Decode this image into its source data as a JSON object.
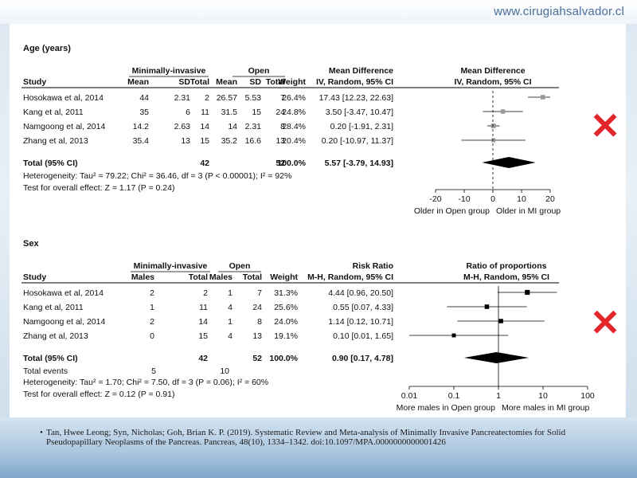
{
  "site_url": "www.cirugiahsalvador.cl",
  "citation_bullet": "•",
  "citation": "Tan, Hwee Leong; Syn, Nicholas; Goh, Brian K. P. (2019). Systematic Review and Meta-analysis of Minimally Invasive Pancreatectomies for Solid Pseudopapillary Neoplasms of the Pancreas. Pancreas, 48(10), 1334–1342. doi:10.1097/MPA.0000000000001426",
  "chart_data": [
    {
      "type": "forest",
      "section_title": "Age (years)",
      "group_headers": {
        "left": "Minimally-invasive",
        "right": "Open"
      },
      "columns": [
        "Study",
        "Mean",
        "SD",
        "Total",
        "Mean",
        "SD",
        "Total",
        "Weight"
      ],
      "effect_header": "Mean Difference",
      "effect_subheader": "IV, Random, 95% CI",
      "plot_header": "Mean Difference",
      "plot_subheader": "IV, Random, 95% CI",
      "studies": [
        {
          "study": "Hosokawa et al, 2014",
          "cells": [
            "44",
            "2.31",
            "2",
            "26.57",
            "5.53",
            "7",
            "26.4%"
          ],
          "ci_text": "17.43 [12.23, 22.63]",
          "est": 17.43,
          "lo": 12.23,
          "hi": 22.63,
          "weight": 26.4
        },
        {
          "study": "Kang et al, 2011",
          "cells": [
            "35",
            "6",
            "11",
            "31.5",
            "15",
            "24",
            "24.8%"
          ],
          "ci_text": "3.50 [-3.47, 10.47]",
          "est": 3.5,
          "lo": -3.47,
          "hi": 10.47,
          "weight": 24.8
        },
        {
          "study": "Namgoong et al, 2014",
          "cells": [
            "14.2",
            "2.63",
            "14",
            "14",
            "2.31",
            "8",
            "28.4%"
          ],
          "ci_text": "0.20 [-1.91, 2.31]",
          "est": 0.2,
          "lo": -1.91,
          "hi": 2.31,
          "weight": 28.4
        },
        {
          "study": "Zhang et al, 2013",
          "cells": [
            "35.4",
            "13",
            "15",
            "35.2",
            "16.6",
            "13",
            "20.4%"
          ],
          "ci_text": "0.20 [-10.97, 11.37]",
          "est": 0.2,
          "lo": -10.97,
          "hi": 11.37,
          "weight": 20.4
        }
      ],
      "total": {
        "label": "Total (95% CI)",
        "mi_total": "42",
        "open_total": "52",
        "weight": "100.0%",
        "ci_text": "5.57 [-3.79, 14.93]",
        "est": 5.57,
        "lo": -3.79,
        "hi": 14.93
      },
      "heterogeneity": "Heterogeneity: Tau² = 79.22; Chi² = 36.46, df = 3 (P < 0.00001); I² = 92%",
      "overall_effect": "Test for overall effect: Z = 1.17 (P = 0.24)",
      "axis": {
        "scale": "linear",
        "min": -20,
        "max": 20,
        "ticks": [
          -20,
          -10,
          0,
          10,
          20
        ],
        "tick_labels": [
          "-20",
          "-10",
          "0",
          "10",
          "20"
        ],
        "left_label": "Older in Open group",
        "right_label": "Older in MI group"
      },
      "marker_color": "#999999",
      "mark": "✕",
      "mark_color": "#e3262b"
    },
    {
      "type": "forest",
      "section_title": "Sex",
      "group_headers": {
        "left": "Minimally-invasive",
        "right": "Open"
      },
      "columns": [
        "Study",
        "Males",
        "Total",
        "Males",
        "Total",
        "Weight"
      ],
      "effect_header": "Risk Ratio",
      "effect_subheader": "M-H, Random, 95% CI",
      "plot_header": "Ratio of proportions",
      "plot_subheader": "M-H, Random, 95% CI",
      "studies": [
        {
          "study": "Hosokawa et al, 2014",
          "cells": [
            "2",
            "2",
            "1",
            "7",
            "31.3%"
          ],
          "ci_text": "4.44 [0.96, 20.50]",
          "est": 4.44,
          "lo": 0.96,
          "hi": 20.5,
          "weight": 31.3
        },
        {
          "study": "Kang et al, 2011",
          "cells": [
            "1",
            "11",
            "4",
            "24",
            "25.6%"
          ],
          "ci_text": "0.55 [0.07, 4.33]",
          "est": 0.55,
          "lo": 0.07,
          "hi": 4.33,
          "weight": 25.6
        },
        {
          "study": "Namgoong et al, 2014",
          "cells": [
            "2",
            "14",
            "1",
            "8",
            "24.0%"
          ],
          "ci_text": "1.14 [0.12, 10.71]",
          "est": 1.14,
          "lo": 0.12,
          "hi": 10.71,
          "weight": 24.0
        },
        {
          "study": "Zhang et al, 2013",
          "cells": [
            "0",
            "15",
            "4",
            "13",
            "19.1%"
          ],
          "ci_text": "0.10 [0.01, 1.65]",
          "est": 0.1,
          "lo": 0.01,
          "hi": 1.65,
          "weight": 19.1
        }
      ],
      "total": {
        "label": "Total (95% CI)",
        "mi_total": "42",
        "open_total": "52",
        "weight": "100.0%",
        "ci_text": "0.90 [0.17, 4.78]",
        "est": 0.9,
        "lo": 0.17,
        "hi": 4.78
      },
      "total_events": {
        "label": "Total events",
        "mi": "5",
        "open": "10"
      },
      "heterogeneity": "Heterogeneity: Tau² = 1.70; Chi² = 7.50, df = 3 (P = 0.06); I² = 60%",
      "overall_effect": "Test for overall effect: Z = 0.12 (P = 0.91)",
      "axis": {
        "scale": "log",
        "min": 0.01,
        "max": 100,
        "ticks": [
          0.01,
          0.1,
          1,
          10,
          100
        ],
        "tick_labels": [
          "0.01",
          "0.1",
          "1",
          "10",
          "100"
        ],
        "left_label": "More males in Open group",
        "right_label": "More males in MI group"
      },
      "marker_color": "#000000",
      "mark": "✕",
      "mark_color": "#e3262b"
    }
  ]
}
